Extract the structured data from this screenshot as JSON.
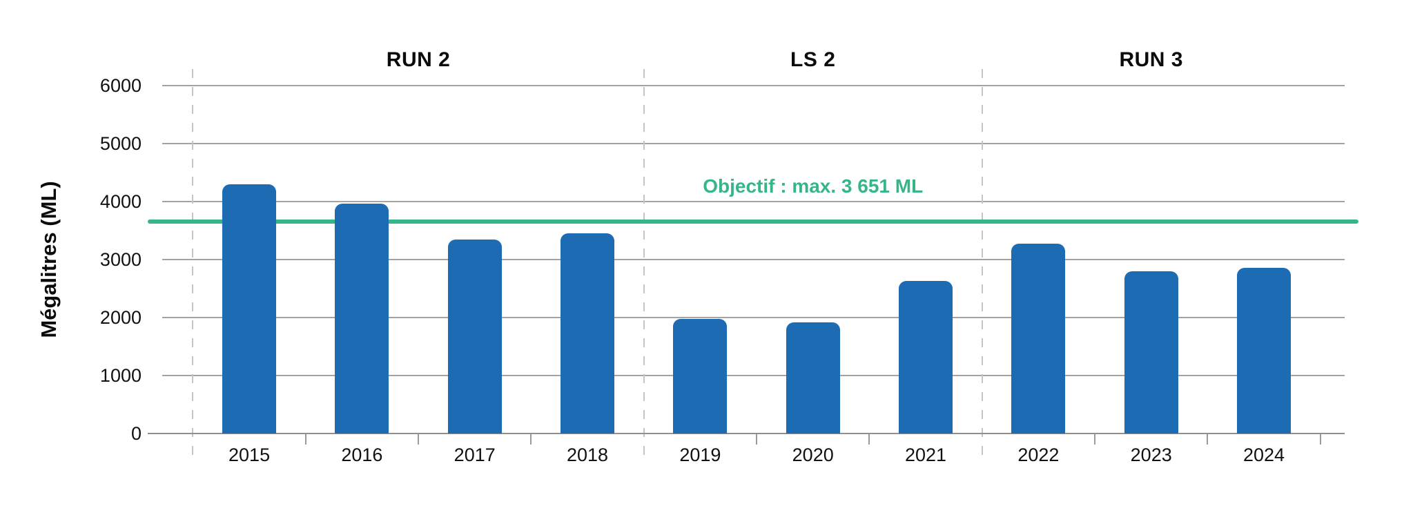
{
  "chart_data": {
    "type": "bar",
    "title": "",
    "ylabel": "Mégalitres (ML)",
    "xlabel": "",
    "categories": [
      "2015",
      "2016",
      "2017",
      "2018",
      "2019",
      "2020",
      "2021",
      "2022",
      "2023",
      "2024"
    ],
    "values": [
      4300,
      3960,
      3345,
      3450,
      1975,
      1915,
      2635,
      3270,
      2800,
      2860
    ],
    "unit": "ML",
    "ylim": [
      0,
      6000
    ],
    "y_ticks": [
      0,
      1000,
      2000,
      3000,
      4000,
      5000,
      6000
    ],
    "grid": "horizontal",
    "legend": "none",
    "sections": [
      {
        "label": "RUN 2",
        "first": "2015",
        "last": "2018"
      },
      {
        "label": "LS 2",
        "first": "2019",
        "last": "2021"
      },
      {
        "label": "RUN 3",
        "first": "2022",
        "last": "2024"
      }
    ],
    "objective": {
      "label": "Objectif : max. 3 651 ML",
      "value": 3651
    },
    "colors": {
      "bar": "#1d6cb3",
      "objective": "#36b687",
      "grid": "#a3a3a3",
      "axis": "#8f8f8f",
      "separator": "#c4c4c4",
      "text": "#111111"
    }
  }
}
